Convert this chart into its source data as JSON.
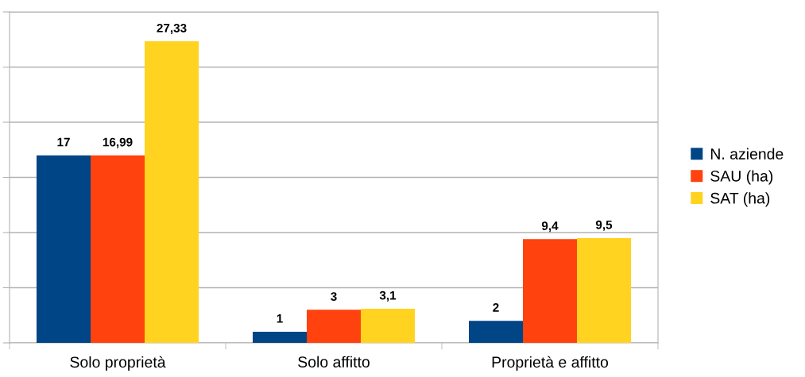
{
  "chart_data": {
    "type": "bar",
    "categories": [
      "Solo proprietà",
      "Solo affitto",
      "Proprietà e affitto"
    ],
    "series": [
      {
        "name": "N. aziende",
        "color": "#004586",
        "values": [
          17,
          1,
          2
        ],
        "value_labels": [
          "17",
          "1",
          "2"
        ]
      },
      {
        "name": "SAU (ha)",
        "color": "#ff420e",
        "values": [
          16.99,
          3,
          9.4
        ],
        "value_labels": [
          "16,99",
          "3",
          "9,4"
        ]
      },
      {
        "name": "SAT (ha)",
        "color": "#ffd320",
        "values": [
          27.33,
          3.1,
          9.5
        ],
        "value_labels": [
          "27,33",
          "3,1",
          "9,5"
        ]
      }
    ],
    "ylim": [
      0,
      30
    ],
    "yticks": [
      {
        "value": 0,
        "label": null
      },
      {
        "value": 5,
        "label": null
      },
      {
        "value": 10,
        "label": null
      },
      {
        "value": 15,
        "label": null
      },
      {
        "value": 20,
        "label": null
      },
      {
        "value": 25,
        "label": null
      },
      {
        "value": 30,
        "label": null
      }
    ],
    "tick_labels": "x",
    "grid": "y",
    "legend": "right"
  }
}
